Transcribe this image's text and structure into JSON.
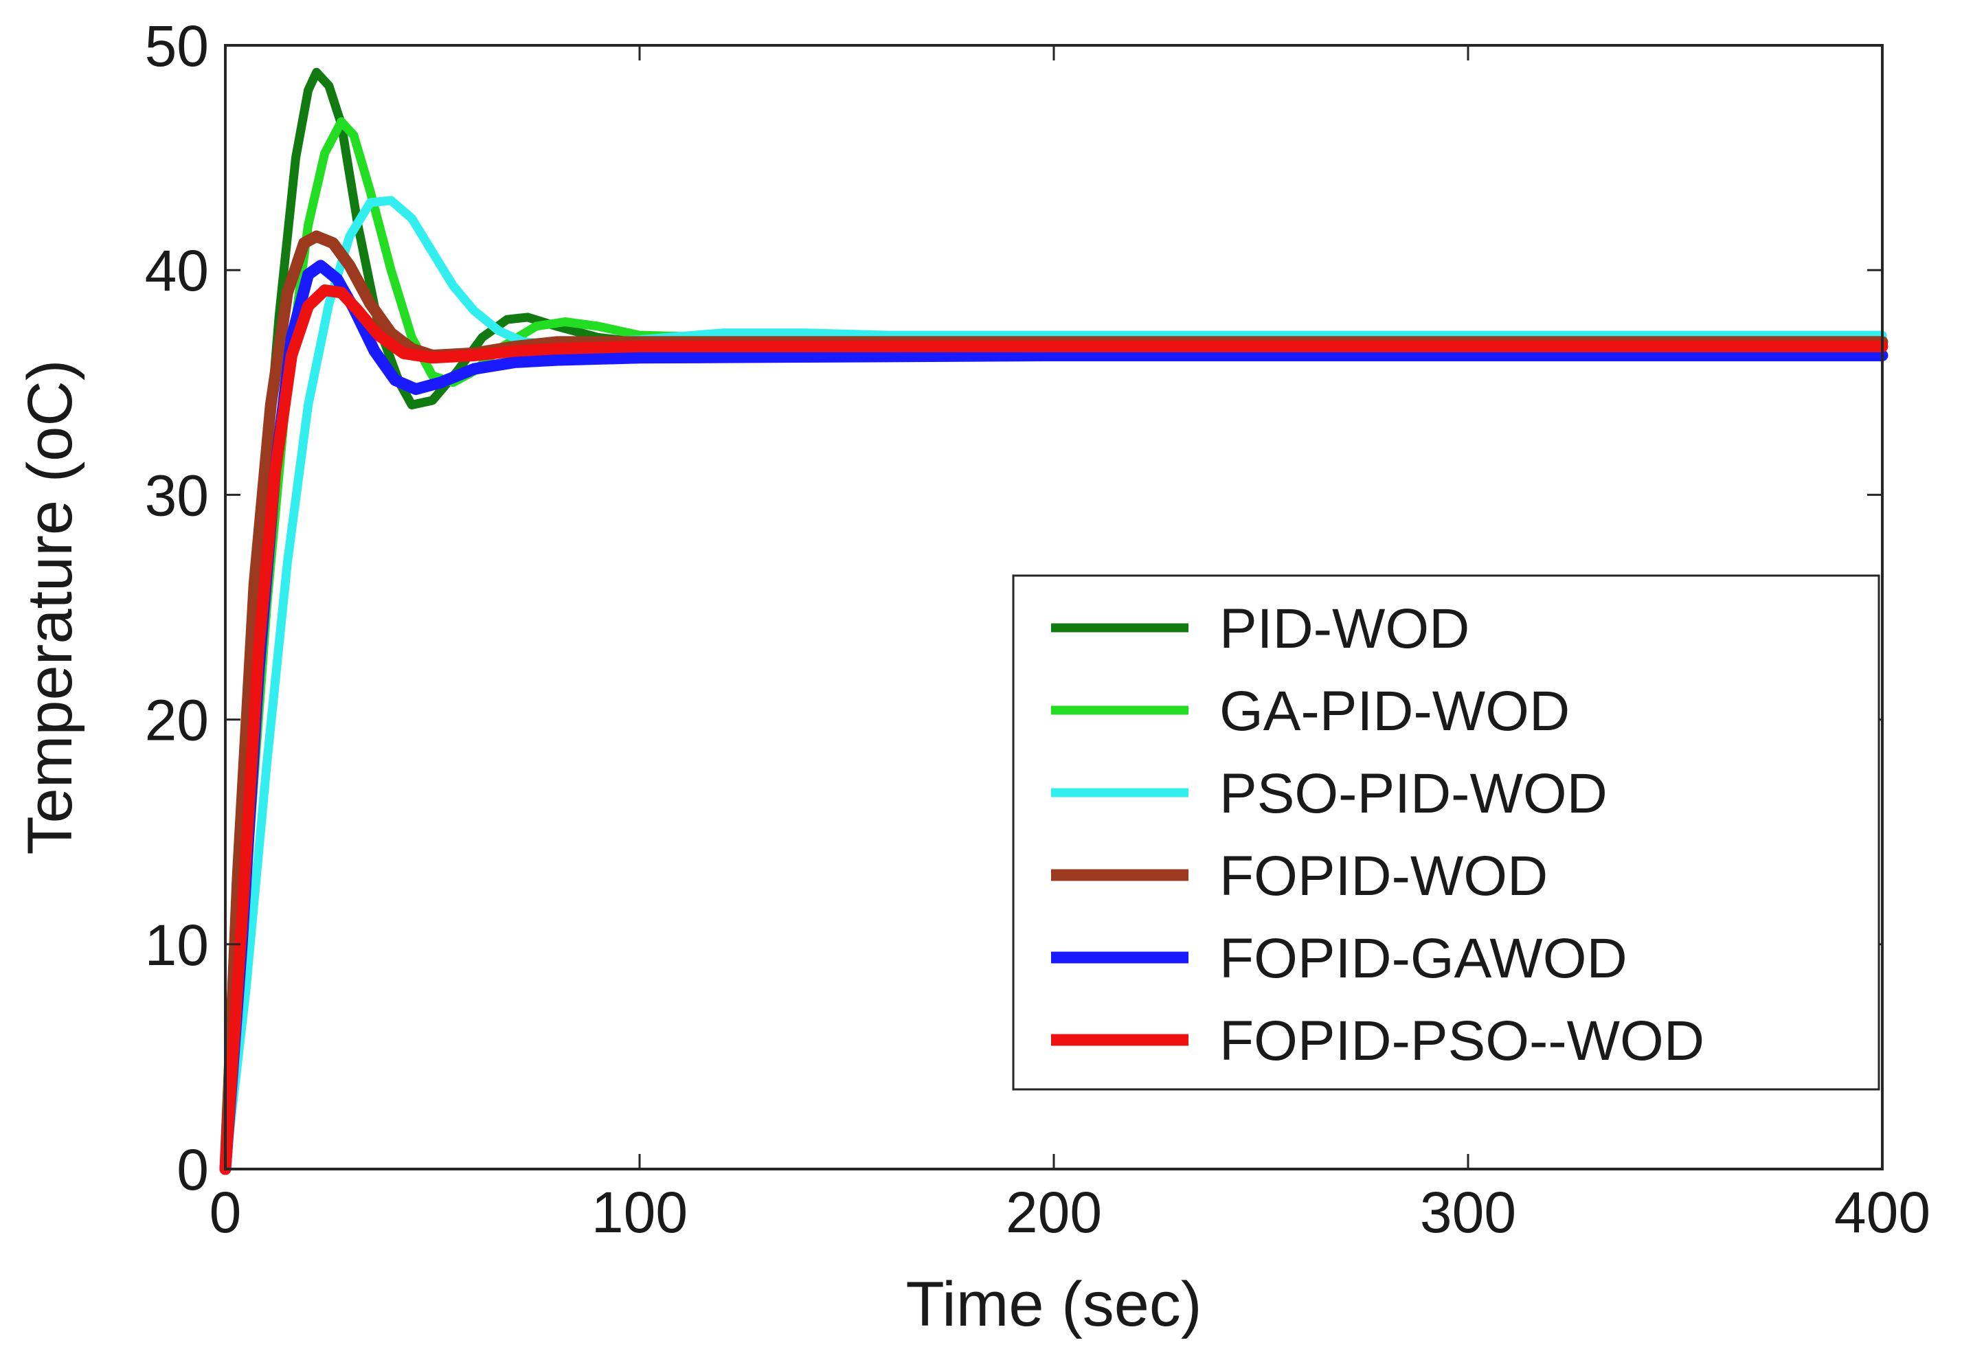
{
  "chart_data": {
    "type": "line",
    "title": "",
    "xlabel": "Time (sec)",
    "ylabel": "Temperature (oC)",
    "xlim": [
      0,
      400
    ],
    "ylim": [
      0,
      50
    ],
    "xticks": [
      0,
      100,
      200,
      300,
      400
    ],
    "yticks": [
      0,
      10,
      20,
      30,
      40,
      50
    ],
    "grid": false,
    "legend_position": "lower-right",
    "series": [
      {
        "name": "PID-WOD",
        "color": "#117a11",
        "points": [
          [
            0,
            0
          ],
          [
            3,
            12
          ],
          [
            8,
            27
          ],
          [
            13,
            38
          ],
          [
            17,
            45
          ],
          [
            20,
            48
          ],
          [
            22,
            48.8
          ],
          [
            25,
            48.2
          ],
          [
            28,
            46.5
          ],
          [
            32,
            42
          ],
          [
            37,
            37.5
          ],
          [
            42,
            35
          ],
          [
            45,
            34
          ],
          [
            50,
            34.2
          ],
          [
            56,
            35.5
          ],
          [
            62,
            37
          ],
          [
            68,
            37.8
          ],
          [
            73,
            37.9
          ],
          [
            80,
            37.5
          ],
          [
            90,
            37
          ],
          [
            100,
            36.8
          ],
          [
            150,
            36.8
          ],
          [
            200,
            36.8
          ],
          [
            400,
            36.8
          ]
        ]
      },
      {
        "name": "GA-PID-WOD",
        "color": "#22dd22",
        "points": [
          [
            0,
            0
          ],
          [
            4,
            10
          ],
          [
            10,
            25
          ],
          [
            15,
            35
          ],
          [
            20,
            42
          ],
          [
            24,
            45.2
          ],
          [
            28,
            46.6
          ],
          [
            31,
            46
          ],
          [
            35,
            43.5
          ],
          [
            40,
            40
          ],
          [
            45,
            37
          ],
          [
            50,
            35.3
          ],
          [
            55,
            35
          ],
          [
            60,
            35.5
          ],
          [
            67,
            36.6
          ],
          [
            75,
            37.5
          ],
          [
            82,
            37.7
          ],
          [
            90,
            37.5
          ],
          [
            100,
            37.1
          ],
          [
            120,
            37
          ],
          [
            200,
            37
          ],
          [
            400,
            37
          ]
        ]
      },
      {
        "name": "PSO-PID-WOD",
        "color": "#33eeee",
        "points": [
          [
            0,
            0
          ],
          [
            5,
            8
          ],
          [
            10,
            18
          ],
          [
            15,
            27
          ],
          [
            20,
            34
          ],
          [
            25,
            38.5
          ],
          [
            30,
            41.5
          ],
          [
            35,
            43
          ],
          [
            40,
            43.1
          ],
          [
            45,
            42.3
          ],
          [
            50,
            40.8
          ],
          [
            55,
            39.3
          ],
          [
            60,
            38.2
          ],
          [
            66,
            37.3
          ],
          [
            72,
            36.8
          ],
          [
            80,
            36.7
          ],
          [
            90,
            36.8
          ],
          [
            100,
            36.9
          ],
          [
            120,
            37.2
          ],
          [
            140,
            37.2
          ],
          [
            160,
            37.1
          ],
          [
            200,
            37.1
          ],
          [
            400,
            37.1
          ]
        ]
      },
      {
        "name": "FOPID-WOD",
        "color": "#9b3a1e",
        "points": [
          [
            0,
            0
          ],
          [
            3,
            13
          ],
          [
            7,
            26
          ],
          [
            11,
            34
          ],
          [
            15,
            39
          ],
          [
            19,
            41.2
          ],
          [
            22,
            41.5
          ],
          [
            26,
            41.2
          ],
          [
            30,
            40.2
          ],
          [
            35,
            38.5
          ],
          [
            40,
            37.2
          ],
          [
            45,
            36.5
          ],
          [
            50,
            36.2
          ],
          [
            60,
            36.3
          ],
          [
            70,
            36.6
          ],
          [
            80,
            36.8
          ],
          [
            100,
            36.8
          ],
          [
            400,
            36.8
          ]
        ]
      },
      {
        "name": "FOPID-GAWOD",
        "color": "#1a1aff",
        "points": [
          [
            0,
            0
          ],
          [
            4,
            10
          ],
          [
            8,
            22
          ],
          [
            12,
            31
          ],
          [
            16,
            37
          ],
          [
            20,
            39.8
          ],
          [
            23,
            40.2
          ],
          [
            27,
            39.6
          ],
          [
            31,
            38.3
          ],
          [
            36,
            36.4
          ],
          [
            41,
            35.1
          ],
          [
            46,
            34.7
          ],
          [
            52,
            35
          ],
          [
            60,
            35.6
          ],
          [
            70,
            35.9
          ],
          [
            80,
            36
          ],
          [
            100,
            36.1
          ],
          [
            200,
            36.2
          ],
          [
            400,
            36.2
          ]
        ]
      },
      {
        "name": "FOPID-PSO--WOD",
        "color": "#ee1111",
        "points": [
          [
            0,
            0
          ],
          [
            4,
            11
          ],
          [
            8,
            23
          ],
          [
            12,
            31
          ],
          [
            16,
            36.2
          ],
          [
            20,
            38.4
          ],
          [
            24,
            39.1
          ],
          [
            28,
            39
          ],
          [
            32,
            38.2
          ],
          [
            37,
            37.1
          ],
          [
            43,
            36.3
          ],
          [
            50,
            36.1
          ],
          [
            60,
            36.2
          ],
          [
            70,
            36.4
          ],
          [
            80,
            36.5
          ],
          [
            100,
            36.6
          ],
          [
            400,
            36.6
          ]
        ]
      }
    ]
  }
}
